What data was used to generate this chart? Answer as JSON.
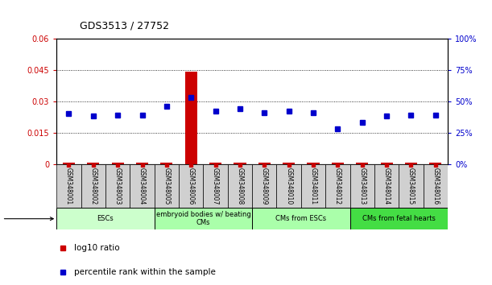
{
  "title": "GDS3513 / 27752",
  "samples": [
    "GSM348001",
    "GSM348002",
    "GSM348003",
    "GSM348004",
    "GSM348005",
    "GSM348006",
    "GSM348007",
    "GSM348008",
    "GSM348009",
    "GSM348010",
    "GSM348011",
    "GSM348012",
    "GSM348013",
    "GSM348014",
    "GSM348015",
    "GSM348016"
  ],
  "log10_ratio": [
    0.0005,
    0.0005,
    0.0005,
    0.0005,
    0.0005,
    0.044,
    0.0005,
    0.0005,
    0.0005,
    0.0005,
    0.0005,
    0.0005,
    0.0005,
    0.0005,
    0.0005,
    0.0005
  ],
  "percentile_rank": [
    40,
    38,
    39,
    39,
    46,
    53,
    42,
    44,
    41,
    42,
    41,
    28,
    33,
    38,
    39,
    39
  ],
  "ylim_left": [
    0,
    0.06
  ],
  "ylim_right": [
    0,
    100
  ],
  "yticks_left": [
    0,
    0.015,
    0.03,
    0.045,
    0.06
  ],
  "yticks_right": [
    0,
    25,
    50,
    75,
    100
  ],
  "ct_groups": [
    {
      "label": "ESCs",
      "start": 0,
      "end": 3,
      "color": "#ccffcc"
    },
    {
      "label": "embryoid bodies w/ beating\nCMs",
      "start": 4,
      "end": 7,
      "color": "#aaffaa"
    },
    {
      "label": "CMs from ESCs",
      "start": 8,
      "end": 11,
      "color": "#aaffaa"
    },
    {
      "label": "CMs from fetal hearts",
      "start": 12,
      "end": 15,
      "color": "#44dd44"
    }
  ],
  "log10_color": "#cc0000",
  "percentile_color": "#0000cc",
  "tick_color_left": "#cc0000",
  "tick_color_right": "#0000cc",
  "sample_box_color": "#d0d0d0",
  "bar_width": 0.5
}
